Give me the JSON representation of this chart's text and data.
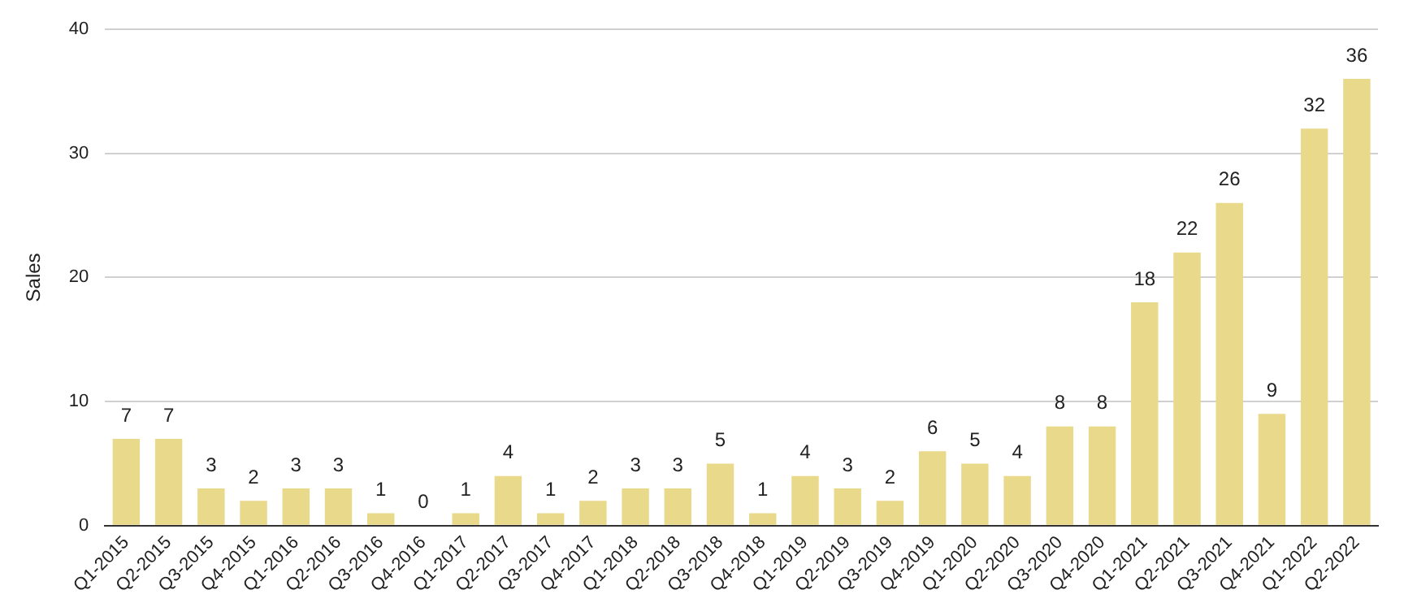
{
  "chart_data": {
    "type": "bar",
    "ylabel": "Sales",
    "categories": [
      "Q1-2015",
      "Q2-2015",
      "Q3-2015",
      "Q4-2015",
      "Q1-2016",
      "Q2-2016",
      "Q3-2016",
      "Q4-2016",
      "Q1-2017",
      "Q2-2017",
      "Q3-2017",
      "Q4-2017",
      "Q1-2018",
      "Q2-2018",
      "Q3-2018",
      "Q4-2018",
      "Q1-2019",
      "Q2-2019",
      "Q3-2019",
      "Q4-2019",
      "Q1-2020",
      "Q2-2020",
      "Q3-2020",
      "Q4-2020",
      "Q1-2021",
      "Q2-2021",
      "Q3-2021",
      "Q4-2021",
      "Q1-2022",
      "Q2-2022"
    ],
    "values": [
      7,
      7,
      3,
      2,
      3,
      3,
      1,
      0,
      1,
      4,
      1,
      2,
      3,
      3,
      5,
      1,
      4,
      3,
      2,
      6,
      5,
      4,
      8,
      8,
      18,
      22,
      26,
      9,
      32,
      36
    ],
    "color": "#e8d98b",
    "ylim": [
      0,
      40
    ],
    "yticks": [
      0,
      10,
      20,
      30,
      40
    ],
    "grid": "y",
    "legend": false,
    "data_labels": true
  }
}
